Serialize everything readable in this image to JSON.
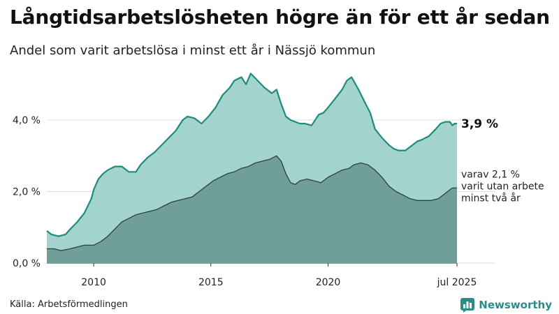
{
  "title": "Långtidsarbetslösheten högre än för ett år sedan",
  "subtitle": "Andel som varit arbetslösa i minst ett år i Nässjö kommun",
  "source": "Källa: Arbetsförmedlingen",
  "brand": {
    "name": "Newsworthy",
    "icon": "newsworthy-logo-icon"
  },
  "colors": {
    "upper_fill": "#a2d3cd",
    "upper_line": "#1e8c7c",
    "lower_fill": "#6f9f98",
    "lower_line": "#2f3f3c",
    "gridline": "#dddddd"
  },
  "chart_data": {
    "type": "area",
    "title": "Långtidsarbetslösheten högre än för ett år sedan",
    "subtitle": "Andel som varit arbetslösa i minst ett år i Nässjö kommun",
    "x_ticks": [
      {
        "value": 2010.0,
        "label": "2010"
      },
      {
        "value": 2015.0,
        "label": "2015"
      },
      {
        "value": 2020.0,
        "label": "2020"
      },
      {
        "value": 2025.5,
        "label": "jul 2025"
      }
    ],
    "y_ticks": [
      {
        "value": 0,
        "label": "0,0 %"
      },
      {
        "value": 2,
        "label": "2,0 %"
      },
      {
        "value": 4,
        "label": "4,0 %"
      }
    ],
    "xlim": [
      2008.0,
      2025.5
    ],
    "ylim": [
      0,
      5.6
    ],
    "grid": true,
    "annotations": [
      {
        "series": 0,
        "text": "3,9 %"
      },
      {
        "series": 1,
        "lines": [
          "varav 2,1 %",
          "varit utan arbete",
          "minst två år"
        ]
      }
    ],
    "series": [
      {
        "description": "minst ett år",
        "x": [
          2008.0,
          2008.2,
          2008.5,
          2008.8,
          2009.0,
          2009.3,
          2009.6,
          2009.9,
          2010.0,
          2010.2,
          2010.4,
          2010.6,
          2010.9,
          2011.2,
          2011.5,
          2011.8,
          2012.0,
          2012.3,
          2012.6,
          2012.9,
          2013.2,
          2013.5,
          2013.8,
          2014.0,
          2014.3,
          2014.6,
          2014.9,
          2015.2,
          2015.5,
          2015.8,
          2016.0,
          2016.3,
          2016.5,
          2016.7,
          2017.0,
          2017.3,
          2017.6,
          2017.8,
          2018.0,
          2018.2,
          2018.4,
          2018.6,
          2018.8,
          2019.0,
          2019.3,
          2019.6,
          2019.8,
          2020.0,
          2020.3,
          2020.6,
          2020.8,
          2021.0,
          2021.3,
          2021.6,
          2021.8,
          2022.0,
          2022.3,
          2022.6,
          2022.8,
          2023.0,
          2023.3,
          2023.6,
          2023.8,
          2024.0,
          2024.3,
          2024.6,
          2024.8,
          2025.0,
          2025.2,
          2025.3,
          2025.4,
          2025.5
        ],
        "values": [
          0.9,
          0.8,
          0.75,
          0.8,
          0.95,
          1.15,
          1.4,
          1.8,
          2.05,
          2.35,
          2.5,
          2.6,
          2.7,
          2.7,
          2.55,
          2.55,
          2.75,
          2.95,
          3.1,
          3.3,
          3.5,
          3.7,
          4.0,
          4.1,
          4.05,
          3.9,
          4.1,
          4.35,
          4.7,
          4.9,
          5.1,
          5.2,
          5.0,
          5.3,
          5.1,
          4.9,
          4.75,
          4.85,
          4.45,
          4.1,
          4.0,
          3.95,
          3.9,
          3.9,
          3.85,
          4.15,
          4.2,
          4.35,
          4.6,
          4.85,
          5.1,
          5.2,
          4.85,
          4.45,
          4.2,
          3.75,
          3.5,
          3.3,
          3.2,
          3.15,
          3.15,
          3.3,
          3.4,
          3.45,
          3.55,
          3.75,
          3.9,
          3.95,
          3.95,
          3.85,
          3.9,
          3.9
        ]
      },
      {
        "description": "minst två år",
        "x": [
          2008.0,
          2008.3,
          2008.6,
          2009.0,
          2009.3,
          2009.6,
          2010.0,
          2010.3,
          2010.6,
          2010.9,
          2011.2,
          2011.5,
          2011.8,
          2012.1,
          2012.4,
          2012.7,
          2013.0,
          2013.3,
          2013.6,
          2013.9,
          2014.2,
          2014.5,
          2014.8,
          2015.1,
          2015.4,
          2015.7,
          2016.0,
          2016.3,
          2016.6,
          2016.9,
          2017.2,
          2017.5,
          2017.8,
          2018.0,
          2018.2,
          2018.4,
          2018.6,
          2018.8,
          2019.1,
          2019.4,
          2019.7,
          2020.0,
          2020.3,
          2020.6,
          2020.9,
          2021.1,
          2021.4,
          2021.7,
          2022.0,
          2022.3,
          2022.6,
          2022.9,
          2023.2,
          2023.5,
          2023.8,
          2024.1,
          2024.4,
          2024.7,
          2025.0,
          2025.2,
          2025.3,
          2025.4,
          2025.5
        ],
        "values": [
          0.4,
          0.4,
          0.35,
          0.4,
          0.45,
          0.5,
          0.5,
          0.6,
          0.75,
          0.95,
          1.15,
          1.25,
          1.35,
          1.4,
          1.45,
          1.5,
          1.6,
          1.7,
          1.75,
          1.8,
          1.85,
          2.0,
          2.15,
          2.3,
          2.4,
          2.5,
          2.55,
          2.65,
          2.7,
          2.8,
          2.85,
          2.9,
          3.0,
          2.85,
          2.5,
          2.25,
          2.2,
          2.3,
          2.35,
          2.3,
          2.25,
          2.4,
          2.5,
          2.6,
          2.65,
          2.75,
          2.8,
          2.75,
          2.6,
          2.4,
          2.15,
          2.0,
          1.9,
          1.8,
          1.75,
          1.75,
          1.75,
          1.8,
          1.95,
          2.05,
          2.1,
          2.1,
          2.1
        ]
      }
    ]
  }
}
